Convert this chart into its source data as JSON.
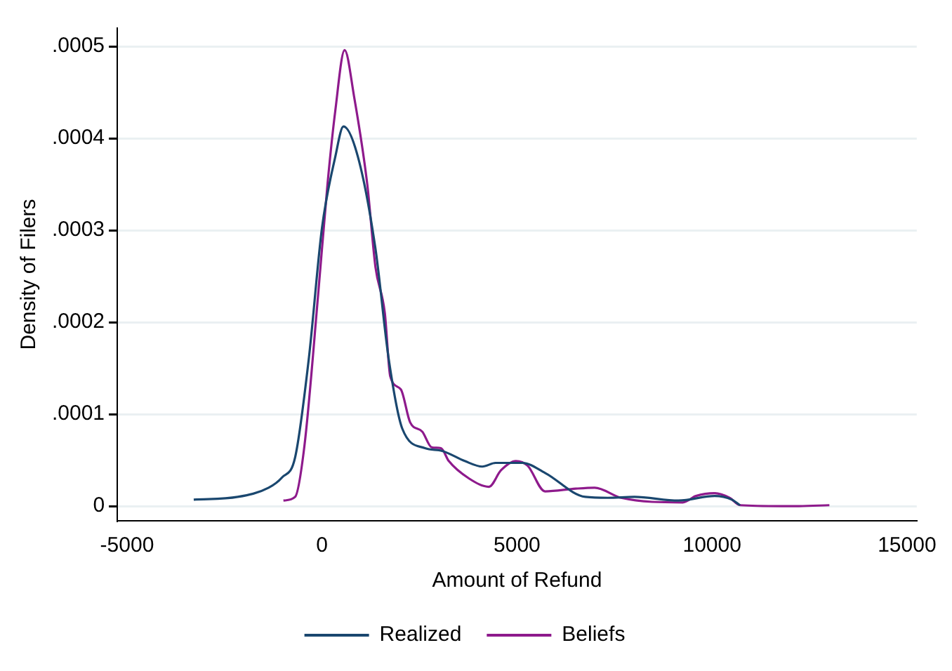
{
  "chart_data": {
    "type": "line",
    "xlabel": "Amount of Refund",
    "ylabel": "Density of Filers",
    "xlim": [
      -5250,
      15250
    ],
    "xticks": [
      -5000,
      0,
      5000,
      10000,
      15000
    ],
    "ylim": [
      -1.6e-05,
      0.00052
    ],
    "yticks": [
      {
        "value": 0,
        "label": "0"
      },
      {
        "value": 0.0001,
        "label": ".0001"
      },
      {
        "value": 0.0002,
        "label": ".0002"
      },
      {
        "value": 0.0003,
        "label": ".0003"
      },
      {
        "value": 0.0004,
        "label": ".0004"
      },
      {
        "value": 0.0005,
        "label": ".0005"
      }
    ],
    "grid": "y",
    "legend": "bottom",
    "marker": "none",
    "line_style": "solid",
    "series": [
      {
        "name": "Realized",
        "color": "#1a476f",
        "x": [
          -3290,
          -2160,
          -1370,
          -1030,
          -690,
          -340,
          0,
          340,
          550,
          920,
          1370,
          1710,
          2060,
          2640,
          3080,
          3660,
          4110,
          4450,
          5140,
          5720,
          6750,
          7330,
          8010,
          9140,
          10070,
          10510,
          10720
        ],
        "values": [
          7e-06,
          1e-05,
          2e-05,
          3.1e-05,
          5.3e-05,
          0.00016,
          0.000303,
          0.00038,
          0.000413,
          0.00038,
          0.00028,
          0.00016,
          8.4e-05,
          6.3e-05,
          6e-05,
          4.9e-05,
          4.3e-05,
          4.7e-05,
          4.7e-05,
          3.6e-05,
          1e-05,
          9e-06,
          1e-05,
          6e-06,
          1.1e-05,
          7e-06,
          1e-06
        ]
      },
      {
        "name": "Beliefs",
        "color": "#8e1a8c",
        "x": [
          -990,
          -690,
          -450,
          -100,
          140,
          340,
          580,
          820,
          1160,
          1370,
          1610,
          1750,
          2020,
          2260,
          2570,
          2810,
          3050,
          3250,
          3770,
          4280,
          4590,
          4970,
          5270,
          5720,
          6510,
          6990,
          7670,
          9250,
          9590,
          10070,
          10450,
          10720,
          11780,
          12230,
          13010
        ],
        "values": [
          6e-06,
          1e-05,
          6.6e-05,
          0.00023,
          0.00035,
          0.00043,
          0.000496,
          0.000446,
          0.00035,
          0.00026,
          0.00021,
          0.000141,
          0.000127,
          9.1e-05,
          8.1e-05,
          6.4e-05,
          6.3e-05,
          4.9e-05,
          3e-05,
          2.1e-05,
          3.9e-05,
          4.9e-05,
          4.4e-05,
          1.6e-05,
          1.9e-05,
          2e-05,
          9e-06,
          4e-06,
          1.1e-05,
          1.4e-05,
          9e-06,
          1e-06,
          0,
          0,
          1e-06
        ]
      }
    ]
  }
}
